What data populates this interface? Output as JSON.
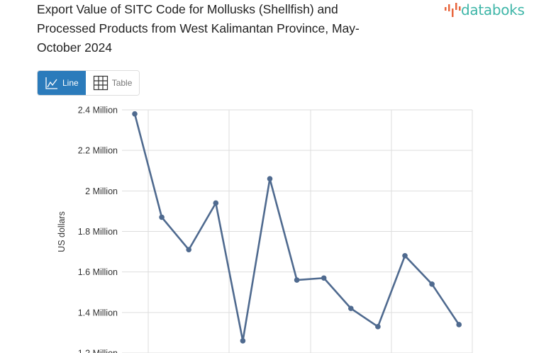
{
  "header": {
    "title": "Export Value of SITC Code for Mollusks (Shellfish) and Processed Products from West Kalimantan Province, May-October 2024",
    "logo_text": "databoks"
  },
  "toggle": {
    "line_label": "Line",
    "table_label": "Table",
    "active": "Line",
    "active_color": "#2b7bbb"
  },
  "chart_data": {
    "type": "line",
    "title": "Export Value of SITC Code for Mollusks (Shellfish) and Processed Products from West Kalimantan Province, May-October 2024",
    "ylabel": "US dollars",
    "ylim": [
      1.2,
      2.4
    ],
    "yticks": [
      {
        "value": 2.4,
        "label": "2.4 Million"
      },
      {
        "value": 2.2,
        "label": "2.2 Million"
      },
      {
        "value": 2.0,
        "label": "2 Million"
      },
      {
        "value": 1.8,
        "label": "1.8 Million"
      },
      {
        "value": 1.6,
        "label": "1.6 Million"
      },
      {
        "value": 1.4,
        "label": "1.4 Million"
      },
      {
        "value": 1.2,
        "label": "1.2 Million"
      }
    ],
    "grid": true,
    "line_color": "#4f6a8f",
    "series": [
      {
        "values": [
          2.38,
          1.87,
          1.71,
          1.94,
          1.26,
          2.06,
          1.56,
          1.57,
          1.42,
          1.33,
          1.68,
          1.54,
          1.34
        ]
      }
    ]
  }
}
